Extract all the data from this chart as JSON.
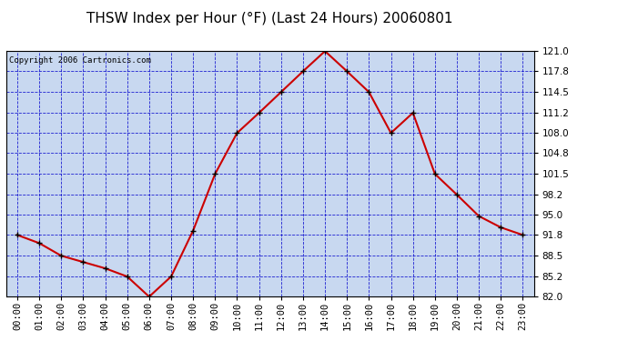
{
  "title": "THSW Index per Hour (°F) (Last 24 Hours) 20060801",
  "copyright": "Copyright 2006 Cartronics.com",
  "hours": [
    0,
    1,
    2,
    3,
    4,
    5,
    6,
    7,
    8,
    9,
    10,
    11,
    12,
    13,
    14,
    15,
    16,
    17,
    18,
    19,
    20,
    21,
    22,
    23
  ],
  "hour_labels": [
    "00:00",
    "01:00",
    "02:00",
    "03:00",
    "04:00",
    "05:00",
    "06:00",
    "07:00",
    "08:00",
    "09:00",
    "10:00",
    "11:00",
    "12:00",
    "13:00",
    "14:00",
    "15:00",
    "16:00",
    "17:00",
    "18:00",
    "19:00",
    "20:00",
    "21:00",
    "22:00",
    "23:00"
  ],
  "values": [
    91.8,
    90.5,
    88.5,
    87.5,
    86.5,
    85.2,
    82.0,
    85.2,
    92.5,
    101.5,
    108.0,
    111.2,
    114.5,
    117.8,
    121.0,
    117.8,
    114.5,
    108.0,
    111.2,
    101.5,
    98.2,
    94.8,
    93.0,
    91.8
  ],
  "line_color": "#cc0000",
  "marker_color": "#000000",
  "bg_color": "#c8d8f0",
  "grid_color": "#0000cc",
  "text_color": "#000000",
  "yticks": [
    82.0,
    85.2,
    88.5,
    91.8,
    95.0,
    98.2,
    101.5,
    104.8,
    108.0,
    111.2,
    114.5,
    117.8,
    121.0
  ],
  "ylim": [
    82.0,
    121.0
  ],
  "title_fontsize": 11,
  "copyright_fontsize": 6.5,
  "tick_fontsize": 7.5,
  "figsize": [
    6.9,
    3.75
  ],
  "dpi": 100
}
